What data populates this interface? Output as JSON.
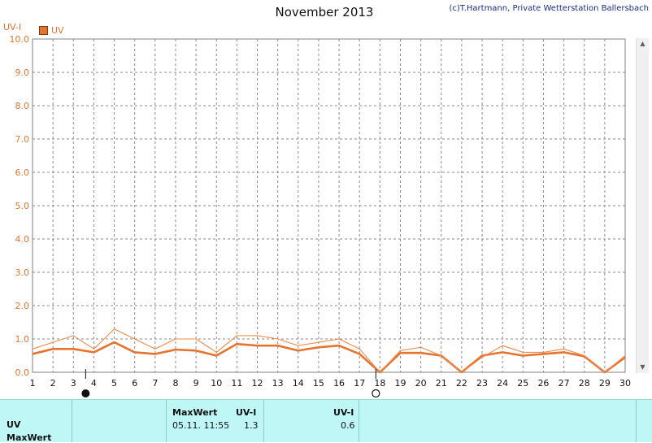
{
  "title": "November 2013",
  "copyright": "(c)T.Hartmann, Private Wetterstation Ballersbach",
  "y_unit_label": "UV-I",
  "legend": [
    {
      "name": "UV",
      "color": "#e6742f"
    }
  ],
  "chart_data": {
    "type": "line",
    "x": [
      1,
      2,
      3,
      4,
      5,
      6,
      7,
      8,
      9,
      10,
      11,
      12,
      13,
      14,
      15,
      16,
      17,
      18,
      19,
      20,
      21,
      22,
      23,
      24,
      25,
      26,
      27,
      28,
      29,
      30
    ],
    "xlim": [
      1,
      30
    ],
    "ylim": [
      0,
      10
    ],
    "yticks": [
      "0.0",
      "1.0",
      "2.0",
      "3.0",
      "4.0",
      "5.0",
      "6.0",
      "7.0",
      "8.0",
      "9.0",
      "10.0"
    ],
    "ylabel": "UV-I",
    "grid": true,
    "series": [
      {
        "name": "UV",
        "role": "average",
        "color": "#e6742f",
        "values": [
          0.55,
          0.7,
          0.7,
          0.6,
          0.9,
          0.6,
          0.55,
          0.68,
          0.65,
          0.5,
          0.85,
          0.8,
          0.8,
          0.65,
          0.75,
          0.8,
          0.55,
          0.0,
          0.58,
          0.58,
          0.5,
          0.0,
          0.5,
          0.6,
          0.5,
          0.55,
          0.6,
          0.48,
          0.0,
          0.45
        ]
      },
      {
        "role": "maximum",
        "color": "#f08a4a",
        "values": [
          0.7,
          0.9,
          1.1,
          0.7,
          1.3,
          1.0,
          0.7,
          1.0,
          1.0,
          0.6,
          1.1,
          1.1,
          1.0,
          0.8,
          0.9,
          1.0,
          0.7,
          0.0,
          0.65,
          0.75,
          0.5,
          0.0,
          0.45,
          0.8,
          0.6,
          0.6,
          0.7,
          0.5,
          0.0,
          0.5
        ]
      }
    ],
    "moon_phases": [
      {
        "day": 3.6,
        "phase": "new-moon"
      },
      {
        "day": 17.8,
        "phase": "full-moon"
      }
    ]
  },
  "panel": {
    "row1_label": "UV",
    "row2_label": "MaxWert",
    "max_header": "MaxWert",
    "max_unit_header": "UV-I",
    "max_time": "05.11.  11:55",
    "max_value": "1.3",
    "avg_unit_header": "UV-I",
    "avg_value": "0.6"
  }
}
